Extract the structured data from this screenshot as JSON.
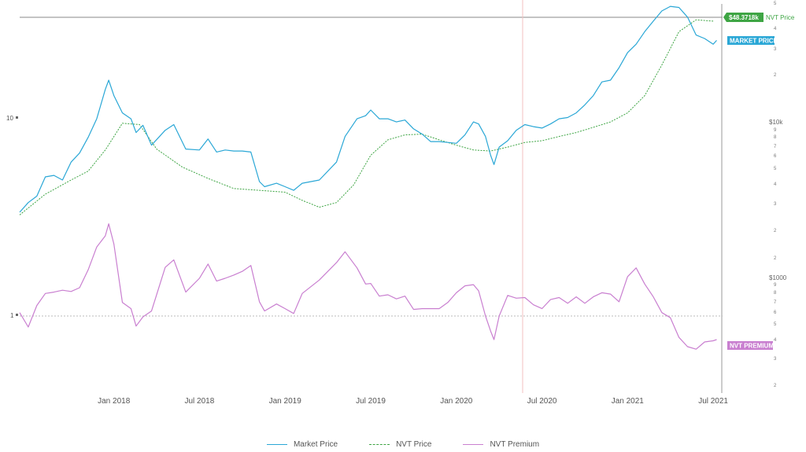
{
  "chart_data": {
    "type": "line",
    "title": "",
    "x_labels": [
      "Jan 2018",
      "Jul 2018",
      "Jan 2019",
      "Jul 2019",
      "Jan 2020",
      "Jul 2020",
      "Jan 2021",
      "Jul 2021"
    ],
    "x_range": [
      2017.45,
      2021.55
    ],
    "upper_axis": {
      "scale": "log",
      "range_usd": [
        1400,
        62000
      ],
      "major_label": "$10k",
      "minor_labels": [
        "5",
        "4",
        "3",
        "2",
        "9",
        "8",
        "7",
        "6",
        "5",
        "4",
        "3",
        "2"
      ]
    },
    "lower_axis": {
      "scale": "log",
      "range_usd": [
        180,
        2400
      ],
      "major_label": "$1000",
      "minor_labels": [
        "2",
        "9",
        "8",
        "7",
        "6",
        "5",
        "4",
        "3",
        "2"
      ]
    },
    "ratio_axis": {
      "labels": [
        "10",
        "1"
      ],
      "values": [
        10,
        1
      ],
      "reference_value": 1
    },
    "series": [
      {
        "name": "Market Price",
        "color": "#2aa7d6",
        "x": [
          2017.45,
          2017.5,
          2017.55,
          2017.6,
          2017.65,
          2017.7,
          2017.75,
          2017.8,
          2017.85,
          2017.9,
          2017.95,
          2017.97,
          2018.0,
          2018.05,
          2018.1,
          2018.13,
          2018.17,
          2018.22,
          2018.3,
          2018.35,
          2018.42,
          2018.5,
          2018.55,
          2018.6,
          2018.65,
          2018.7,
          2018.75,
          2018.8,
          2018.85,
          2018.88,
          2018.95,
          2019.0,
          2019.05,
          2019.1,
          2019.2,
          2019.3,
          2019.35,
          2019.42,
          2019.47,
          2019.5,
          2019.55,
          2019.6,
          2019.65,
          2019.7,
          2019.75,
          2019.8,
          2019.85,
          2019.9,
          2019.95,
          2020.0,
          2020.05,
          2020.1,
          2020.13,
          2020.17,
          2020.2,
          2020.22,
          2020.25,
          2020.3,
          2020.35,
          2020.4,
          2020.45,
          2020.5,
          2020.55,
          2020.6,
          2020.65,
          2020.7,
          2020.75,
          2020.8,
          2020.85,
          2020.9,
          2020.95,
          2021.0,
          2021.05,
          2021.1,
          2021.15,
          2021.2,
          2021.25,
          2021.3,
          2021.35,
          2021.4,
          2021.45,
          2021.5,
          2021.52
        ],
        "y": [
          2500,
          2900,
          3200,
          4300,
          4400,
          4100,
          5400,
          6200,
          7900,
          10500,
          16500,
          19000,
          15000,
          11500,
          10500,
          8500,
          9500,
          7000,
          8800,
          9600,
          6600,
          6500,
          7700,
          6300,
          6500,
          6400,
          6400,
          6300,
          4000,
          3700,
          3900,
          3700,
          3500,
          3900,
          4100,
          5400,
          8000,
          10500,
          11000,
          12000,
          10500,
          10500,
          10000,
          10300,
          9000,
          8300,
          7400,
          7400,
          7300,
          7200,
          8200,
          10000,
          9700,
          8000,
          6000,
          5200,
          6800,
          7500,
          8800,
          9600,
          9300,
          9100,
          9700,
          10500,
          10700,
          11500,
          13000,
          15000,
          18500,
          19000,
          23000,
          29000,
          33000,
          40000,
          47000,
          55000,
          59000,
          58000,
          50000,
          38000,
          36000,
          33000,
          35000
        ]
      },
      {
        "name": "NVT Price",
        "color": "#3ea544",
        "x": [
          2017.45,
          2017.6,
          2017.75,
          2017.85,
          2017.95,
          2018.05,
          2018.15,
          2018.25,
          2018.4,
          2018.55,
          2018.7,
          2018.85,
          2019.0,
          2019.1,
          2019.2,
          2019.3,
          2019.4,
          2019.5,
          2019.6,
          2019.7,
          2019.8,
          2019.9,
          2020.0,
          2020.1,
          2020.2,
          2020.3,
          2020.4,
          2020.5,
          2020.6,
          2020.7,
          2020.8,
          2020.9,
          2021.0,
          2021.1,
          2021.2,
          2021.3,
          2021.4,
          2021.5
        ],
        "y": [
          2400,
          3300,
          4100,
          4700,
          6500,
          9800,
          9600,
          6600,
          5000,
          4200,
          3600,
          3500,
          3400,
          3000,
          2700,
          2900,
          3800,
          6000,
          7600,
          8200,
          8300,
          7600,
          7000,
          6500,
          6400,
          6800,
          7300,
          7500,
          8000,
          8500,
          9200,
          10000,
          11500,
          15000,
          24000,
          40000,
          48000,
          47000
        ]
      },
      {
        "name": "NVT Premium",
        "color": "#c97fd0",
        "x": [
          2017.45,
          2017.5,
          2017.55,
          2017.6,
          2017.65,
          2017.7,
          2017.75,
          2017.8,
          2017.85,
          2017.9,
          2017.95,
          2017.97,
          2018.0,
          2018.05,
          2018.1,
          2018.13,
          2018.17,
          2018.22,
          2018.3,
          2018.35,
          2018.42,
          2018.5,
          2018.55,
          2018.6,
          2018.65,
          2018.7,
          2018.75,
          2018.8,
          2018.85,
          2018.88,
          2018.95,
          2019.0,
          2019.05,
          2019.1,
          2019.2,
          2019.3,
          2019.35,
          2019.42,
          2019.47,
          2019.5,
          2019.55,
          2019.6,
          2019.65,
          2019.7,
          2019.75,
          2019.8,
          2019.85,
          2019.9,
          2019.95,
          2020.0,
          2020.05,
          2020.1,
          2020.13,
          2020.17,
          2020.2,
          2020.22,
          2020.25,
          2020.3,
          2020.35,
          2020.4,
          2020.45,
          2020.5,
          2020.55,
          2020.6,
          2020.65,
          2020.7,
          2020.75,
          2020.8,
          2020.85,
          2020.9,
          2020.95,
          2021.0,
          2021.05,
          2021.1,
          2021.15,
          2021.2,
          2021.25,
          2021.3,
          2021.35,
          2021.4,
          2021.45,
          2021.5,
          2021.52
        ],
        "y": [
          1.04,
          0.88,
          1.13,
          1.3,
          1.32,
          1.35,
          1.33,
          1.39,
          1.71,
          2.23,
          2.54,
          2.92,
          2.31,
          1.17,
          1.09,
          0.89,
          0.99,
          1.06,
          1.76,
          1.92,
          1.32,
          1.55,
          1.83,
          1.5,
          1.55,
          1.61,
          1.68,
          1.8,
          1.18,
          1.06,
          1.15,
          1.09,
          1.03,
          1.3,
          1.52,
          1.86,
          2.11,
          1.75,
          1.45,
          1.46,
          1.26,
          1.28,
          1.22,
          1.26,
          1.08,
          1.09,
          1.09,
          1.09,
          1.17,
          1.31,
          1.42,
          1.44,
          1.34,
          1.0,
          0.84,
          0.76,
          1.0,
          1.27,
          1.23,
          1.24,
          1.14,
          1.09,
          1.21,
          1.24,
          1.16,
          1.25,
          1.16,
          1.25,
          1.31,
          1.29,
          1.18,
          1.58,
          1.75,
          1.45,
          1.25,
          1.04,
          0.98,
          0.78,
          0.7,
          0.68,
          0.74,
          0.75,
          0.76
        ]
      }
    ],
    "annotations": {
      "nvt_price_badge": "$48.3718k",
      "nvt_price_label": "NVT Price",
      "market_price_badge": "MARKET PRICE",
      "nvt_premium_badge": "NVT PREMIUM"
    },
    "legend": [
      "Market Price",
      "NVT Price",
      "NVT Premium"
    ],
    "legend_position": "bottom-center"
  },
  "colors": {
    "market": "#2aa7d6",
    "nvt": "#3ea544",
    "premium": "#c97fd0",
    "badge_green": "#3ea544",
    "badge_blue": "#2aa7d6",
    "badge_pink": "#c97fd0"
  }
}
